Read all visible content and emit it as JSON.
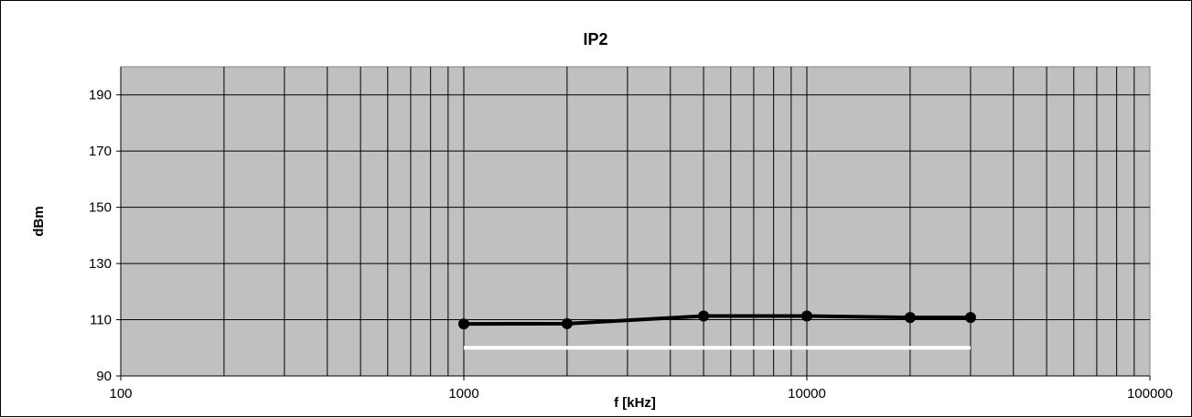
{
  "chart_data": {
    "type": "line",
    "title": "IP2",
    "xlabel": "f [kHz]",
    "ylabel": "dBm",
    "x_scale": "log",
    "xlim": [
      100,
      100000
    ],
    "ylim": [
      90,
      200
    ],
    "x_ticks": [
      100,
      1000,
      10000,
      100000
    ],
    "y_ticks": [
      90,
      110,
      130,
      150,
      170,
      190
    ],
    "grid": true,
    "legend": "none",
    "series": [
      {
        "x": [
          1000,
          2000,
          5000,
          10000,
          20000,
          30000
        ],
        "y": [
          108.5,
          108.6,
          111.3,
          111.3,
          110.8,
          110.8
        ],
        "color": "#000000",
        "marker": "circle"
      },
      {
        "x": [
          1000,
          30000
        ],
        "y": [
          100,
          100
        ],
        "color": "#ffffff",
        "marker": "none"
      }
    ]
  }
}
